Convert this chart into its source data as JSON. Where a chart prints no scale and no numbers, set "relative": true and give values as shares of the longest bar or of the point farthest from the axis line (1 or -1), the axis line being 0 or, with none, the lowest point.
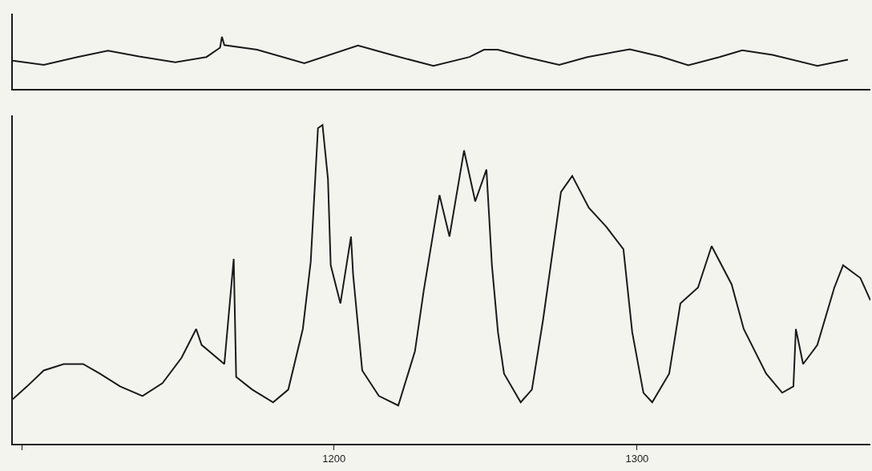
{
  "chart_data": [
    {
      "type": "line",
      "relative": true,
      "xlim": [
        1094,
        1377
      ],
      "tick_labels": false,
      "color": "#1a1a1a",
      "x": [
        1094.0,
        1104.2,
        1115.3,
        1125.4,
        1135.7,
        1147.6,
        1157.9,
        1162.4,
        1163.0,
        1163.8,
        1174.6,
        1190.2,
        1207.9,
        1219.0,
        1232.8,
        1244.7,
        1249.5,
        1254.0,
        1263.2,
        1274.3,
        1283.6,
        1297.6,
        1307.7,
        1316.9,
        1327.2,
        1334.7,
        1344.7,
        1359.5,
        1369.6
      ],
      "values": [
        0.54,
        0.46,
        0.61,
        0.73,
        0.62,
        0.51,
        0.61,
        0.79,
        1.0,
        0.84,
        0.75,
        0.49,
        0.83,
        0.65,
        0.44,
        0.61,
        0.75,
        0.75,
        0.61,
        0.46,
        0.61,
        0.76,
        0.62,
        0.45,
        0.61,
        0.74,
        0.65,
        0.44,
        0.56
      ]
    },
    {
      "type": "line",
      "relative": true,
      "xlim": [
        1094,
        1377
      ],
      "xticks": [
        {
          "value": 1097,
          "label": null
        },
        1200,
        1300
      ],
      "tick_labels": "x",
      "color": "#1a1a1a",
      "x": [
        1094.0,
        1098.7,
        1104.2,
        1110.8,
        1117.2,
        1122.7,
        1129.4,
        1136.8,
        1143.4,
        1149.7,
        1154.5,
        1156.3,
        1163.8,
        1166.9,
        1167.7,
        1173.0,
        1179.9,
        1184.9,
        1189.7,
        1192.3,
        1194.7,
        1196.2,
        1198.0,
        1198.9,
        1202.1,
        1205.6,
        1206.3,
        1209.3,
        1214.8,
        1221.2,
        1226.7,
        1229.6,
        1234.8,
        1238.1,
        1242.9,
        1246.6,
        1250.3,
        1252.1,
        1254.1,
        1256.1,
        1261.6,
        1265.3,
        1269.0,
        1274.9,
        1278.6,
        1284.1,
        1289.9,
        1295.5,
        1298.4,
        1302.1,
        1305.0,
        1310.6,
        1314.3,
        1320.1,
        1324.6,
        1331.2,
        1335.2,
        1342.6,
        1347.9,
        1351.6,
        1352.4,
        1354.8,
        1359.5,
        1365.1,
        1368.0,
        1373.7,
        1377.0
      ],
      "values": [
        0.14,
        0.18,
        0.23,
        0.25,
        0.25,
        0.22,
        0.18,
        0.15,
        0.19,
        0.27,
        0.36,
        0.31,
        0.25,
        0.58,
        0.21,
        0.17,
        0.13,
        0.17,
        0.36,
        0.57,
        0.99,
        1.0,
        0.83,
        0.56,
        0.44,
        0.65,
        0.53,
        0.23,
        0.15,
        0.12,
        0.29,
        0.48,
        0.78,
        0.65,
        0.92,
        0.76,
        0.86,
        0.56,
        0.35,
        0.22,
        0.13,
        0.17,
        0.39,
        0.79,
        0.84,
        0.74,
        0.68,
        0.61,
        0.35,
        0.16,
        0.13,
        0.22,
        0.44,
        0.49,
        0.62,
        0.5,
        0.36,
        0.22,
        0.16,
        0.18,
        0.36,
        0.25,
        0.31,
        0.49,
        0.56,
        0.52,
        0.45
      ]
    }
  ]
}
